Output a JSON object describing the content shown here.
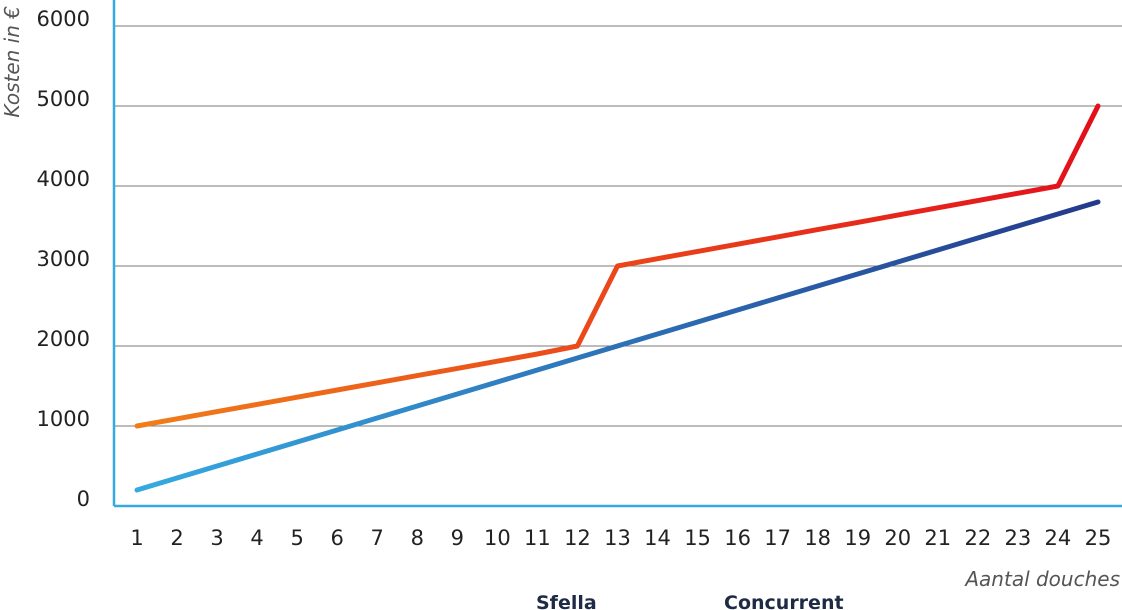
{
  "chart_data": {
    "type": "line",
    "title": "",
    "xlabel": "Aantal douches",
    "ylabel": "Kosten in €",
    "categories": [
      "1",
      "2",
      "3",
      "4",
      "5",
      "6",
      "7",
      "8",
      "9",
      "10",
      "11",
      "12",
      "13",
      "14",
      "15",
      "16",
      "17",
      "18",
      "19",
      "20",
      "21",
      "22",
      "23",
      "24",
      "25"
    ],
    "ylim": [
      0,
      6000
    ],
    "yticks": [
      0,
      1000,
      2000,
      3000,
      4000,
      5000,
      6000
    ],
    "grid": true,
    "legend_position": "bottom-center",
    "series": [
      {
        "name": "Sfella",
        "color_start": "#36a9e1",
        "color_end": "#233a8c",
        "values": [
          200,
          350,
          500,
          650,
          800,
          950,
          1100,
          1250,
          1400,
          1550,
          1700,
          1850,
          2000,
          2150,
          2300,
          2450,
          2600,
          2750,
          2900,
          3050,
          3200,
          3350,
          3500,
          3650,
          3800
        ]
      },
      {
        "name": "Concurrent",
        "color_start": "#f07d1a",
        "color_end": "#e30f1b",
        "values": [
          1000,
          1090,
          1180,
          1270,
          1360,
          1450,
          1540,
          1630,
          1720,
          1810,
          1900,
          2000,
          3000,
          3091,
          3182,
          3273,
          3364,
          3455,
          3545,
          3636,
          3727,
          3818,
          3909,
          4000,
          5000
        ]
      }
    ],
    "axis_color": "#36a9e1"
  }
}
